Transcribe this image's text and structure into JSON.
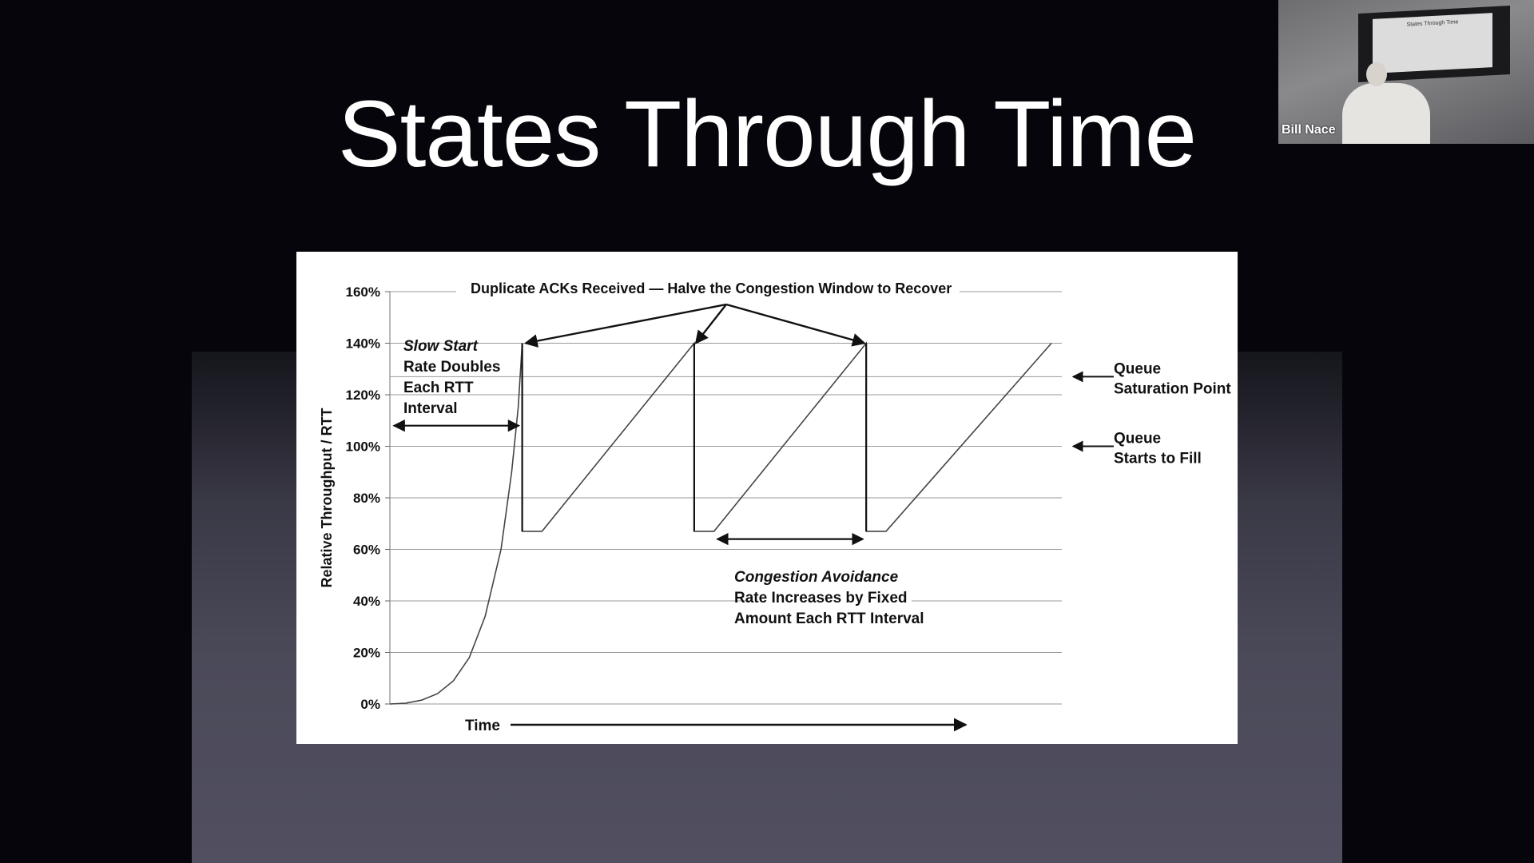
{
  "slide": {
    "title": "States Through Time"
  },
  "video": {
    "name": "Bill Nace",
    "screen_title": "States Through Time"
  },
  "chart_data": {
    "type": "line",
    "title": "Duplicate ACKs Received — Halve the Congestion Window to Recover",
    "ylabel": "Relative Throughput / RTT",
    "xlabel": "Time",
    "ylim": [
      0,
      160
    ],
    "yticks": [
      0,
      20,
      40,
      60,
      80,
      100,
      120,
      140,
      160
    ],
    "ytick_labels": [
      "0%",
      "20%",
      "40%",
      "60%",
      "80%",
      "100%",
      "120%",
      "140%",
      "160%"
    ],
    "grid": true,
    "series": [
      {
        "points": [
          [
            0,
            0
          ],
          [
            0.12,
            0.3
          ],
          [
            0.24,
            1.5
          ],
          [
            0.36,
            4
          ],
          [
            0.48,
            9
          ],
          [
            0.6,
            18
          ],
          [
            0.72,
            34
          ],
          [
            0.84,
            60
          ],
          [
            0.92,
            90
          ],
          [
            0.97,
            115
          ],
          [
            1.0,
            140
          ],
          [
            1.0,
            67
          ],
          [
            1.15,
            67
          ],
          [
            2.3,
            140
          ],
          [
            2.3,
            67
          ],
          [
            2.45,
            67
          ],
          [
            3.6,
            140
          ],
          [
            3.6,
            67
          ],
          [
            3.75,
            67
          ],
          [
            5.0,
            140
          ]
        ]
      }
    ],
    "reference_lines": [
      {
        "y": 127,
        "label_line1": "Queue",
        "label_line2": "Saturation Point"
      },
      {
        "y": 100,
        "label_line1": "Queue",
        "label_line2": "Starts to Fill"
      }
    ],
    "annotations": {
      "slow_start": {
        "title": "Slow Start",
        "lines": [
          "Rate Doubles",
          "Each RTT",
          "Interval"
        ]
      },
      "congestion_avoidance": {
        "title": "Congestion Avoidance",
        "lines": [
          "Rate Increases by Fixed",
          "Amount Each RTT Interval"
        ]
      }
    }
  }
}
